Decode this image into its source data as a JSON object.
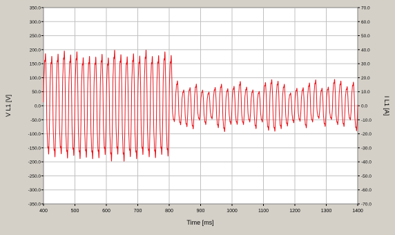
{
  "chart_data": {
    "type": "line",
    "xlabel": "Time [ms]",
    "ylabel_left": "V L1 [V]",
    "ylabel_right": "I L1 [A]",
    "xlim": [
      400,
      1400
    ],
    "ylim_left": [
      -350,
      350
    ],
    "ylim_right": [
      -70,
      70
    ],
    "x_ticks": [
      "400",
      "500",
      "600",
      "700",
      "800",
      "900",
      "1000",
      "1100",
      "1200",
      "1300",
      "1400"
    ],
    "y_ticks_left": [
      "350.0",
      "300.0",
      "250.0",
      "200.0",
      "150.0",
      "100.0",
      "50.0",
      "0.0",
      "-50.0",
      "-100.0",
      "-150.0",
      "-200.0",
      "-250.0",
      "-300.0",
      "-350.0"
    ],
    "y_ticks_right": [
      "70.0",
      "60.0",
      "50.0",
      "40.0",
      "30.0",
      "20.0",
      "10.0",
      "0.0",
      "-10.0",
      "-20.0",
      "-30.0",
      "-40.0",
      "-50.0",
      "-60.0",
      "-70.0"
    ],
    "grid": true,
    "colors": {
      "signal": "#e8141b",
      "grid": "#c0c0c0",
      "background": "#ffffff",
      "frame": "#d4d0c8"
    },
    "series": [
      {
        "axis": "left",
        "frequency_hz": 50,
        "segments": [
          {
            "x_start": 400,
            "x_end": 810,
            "amplitude_min": 170,
            "amplitude_max": 200
          },
          {
            "x_start": 810,
            "x_end": 1400,
            "amplitude_min": 45,
            "amplitude_max": 95
          }
        ]
      }
    ]
  }
}
